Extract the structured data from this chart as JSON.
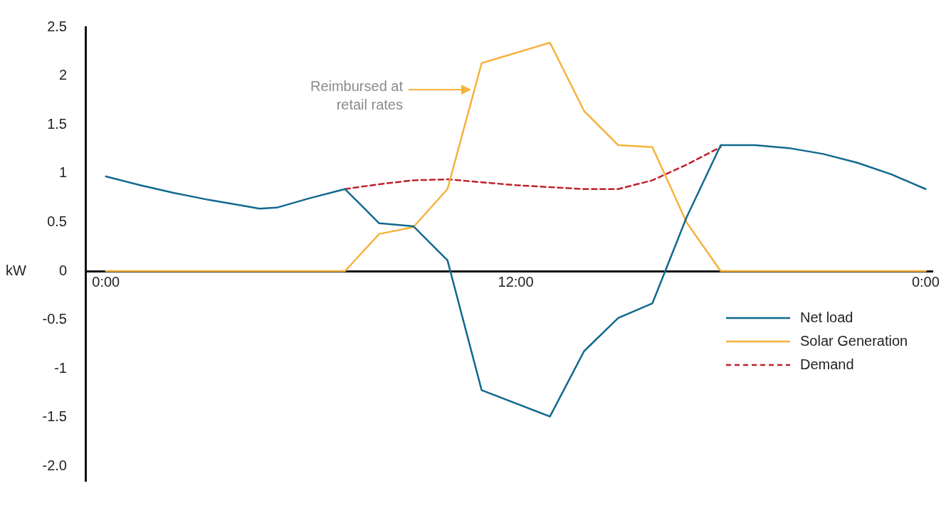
{
  "chart_data": {
    "type": "line",
    "ylabel": "kW",
    "xlim": [
      -0.6,
      24.2
    ],
    "ylim": [
      -2.15,
      2.5
    ],
    "xticks": [
      {
        "value": 0,
        "label": "0:00"
      },
      {
        "value": 12,
        "label": "12:00"
      },
      {
        "value": 24,
        "label": "0:00"
      }
    ],
    "yticks": [
      2.5,
      2,
      1.5,
      1,
      0.5,
      0,
      -0.5,
      -1,
      -1.5,
      {
        "value": -2,
        "label": "-2.0"
      }
    ],
    "grid": false,
    "legend": "bottom right",
    "marker": "none",
    "annotations": [
      "Reimbursed at\nretail rates"
    ],
    "series": [
      {
        "name": "Net load",
        "color": "#10698f",
        "x": [
          0,
          1,
          2,
          3,
          4,
          4.5,
          5,
          6,
          7,
          8,
          9,
          10,
          11,
          13,
          14,
          15,
          16,
          17,
          18,
          19,
          20,
          21,
          22,
          23,
          24
        ],
        "values": [
          0.97,
          0.88,
          0.8,
          0.73,
          0.67,
          0.64,
          0.65,
          0.75,
          0.84,
          0.49,
          0.46,
          0.11,
          -1.22,
          -1.49,
          -0.82,
          -0.48,
          -0.33,
          0.55,
          1.29,
          1.29,
          1.26,
          1.2,
          1.11,
          0.99,
          0.84
        ]
      },
      {
        "name": "Solar Generation",
        "color": "#f7b13c",
        "x": [
          0,
          7,
          8,
          9,
          10,
          11,
          13,
          14,
          15,
          16,
          17,
          18,
          24
        ],
        "values": [
          0,
          0,
          0.38,
          0.45,
          0.84,
          2.13,
          2.34,
          1.64,
          1.29,
          1.27,
          0.5,
          0,
          0
        ]
      },
      {
        "name": "Demand",
        "color": "#c0202e",
        "line_style": "dashed",
        "x": [
          7,
          8,
          9,
          10,
          11,
          12,
          13,
          14,
          15,
          16,
          17,
          18
        ],
        "values": [
          0.84,
          0.89,
          0.93,
          0.94,
          0.91,
          0.88,
          0.86,
          0.84,
          0.84,
          0.93,
          1.09,
          1.27
        ]
      }
    ]
  }
}
